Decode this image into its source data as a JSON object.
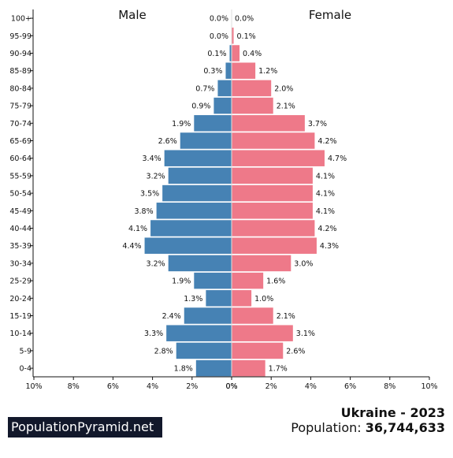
{
  "chart_data": {
    "type": "bar",
    "orientation": "horizontal",
    "layout": "population-pyramid",
    "categories": [
      "100+",
      "95-99",
      "90-94",
      "85-89",
      "80-84",
      "75-79",
      "70-74",
      "65-69",
      "60-64",
      "55-59",
      "50-54",
      "45-49",
      "40-44",
      "35-39",
      "30-34",
      "25-29",
      "20-24",
      "15-19",
      "10-14",
      "5-9",
      "0-4"
    ],
    "series": [
      {
        "name": "Male",
        "values": [
          0.0,
          0.0,
          0.1,
          0.3,
          0.7,
          0.9,
          1.9,
          2.6,
          3.4,
          3.2,
          3.5,
          3.8,
          4.1,
          4.4,
          3.2,
          1.9,
          1.3,
          2.4,
          3.3,
          2.8,
          1.8
        ],
        "labels": [
          "0.0%",
          "0.0%",
          "0.1%",
          "0.3%",
          "0.7%",
          "0.9%",
          "1.9%",
          "2.6%",
          "3.4%",
          "3.2%",
          "3.5%",
          "3.8%",
          "4.1%",
          "4.4%",
          "3.2%",
          "1.9%",
          "1.3%",
          "2.4%",
          "3.3%",
          "2.8%",
          "1.8%"
        ],
        "color": "#4682b4"
      },
      {
        "name": "Female",
        "values": [
          0.0,
          0.1,
          0.4,
          1.2,
          2.0,
          2.1,
          3.7,
          4.2,
          4.7,
          4.1,
          4.1,
          4.1,
          4.2,
          4.3,
          3.0,
          1.6,
          1.0,
          2.1,
          3.1,
          2.6,
          1.7
        ],
        "labels": [
          "0.0%",
          "0.1%",
          "0.4%",
          "1.2%",
          "2.0%",
          "2.1%",
          "3.7%",
          "4.2%",
          "4.7%",
          "4.1%",
          "4.1%",
          "4.1%",
          "4.2%",
          "4.3%",
          "3.0%",
          "1.6%",
          "1.0%",
          "2.1%",
          "3.1%",
          "2.6%",
          "1.7%"
        ],
        "color": "#ee7989"
      }
    ],
    "xlim": [
      0,
      10
    ],
    "x_ticks": {
      "left": [
        "10%",
        "8%",
        "6%",
        "4%",
        "2%",
        "0%"
      ],
      "right": [
        "0%",
        "2%",
        "4%",
        "6%",
        "8%",
        "10%"
      ]
    },
    "grid": false
  },
  "branding": {
    "site": "PopulationPyramid.net"
  },
  "summary": {
    "title": "Ukraine - 2023",
    "population_label": "Population:",
    "population_value": "36,744,633"
  }
}
